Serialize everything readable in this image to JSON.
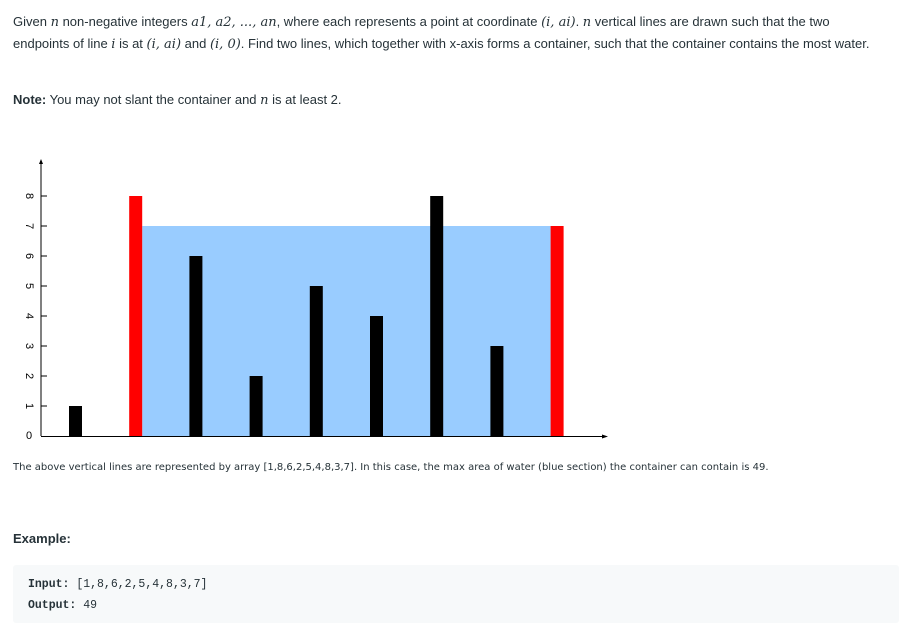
{
  "description": {
    "p1": "Given ",
    "n1": "n",
    "p2": " non-negative integers ",
    "seq": "a1, a2, ..., an",
    "p3": ", where each represents a point at coordinate ",
    "coord1": "(i, ai)",
    "p4": ". ",
    "n2": "n",
    "p5": " vertical lines are drawn such that the two endpoints of line ",
    "i1": "i",
    "p6": " is at ",
    "coord2": "(i, ai)",
    "p7": " and ",
    "coord3": "(i, 0)",
    "p8": ". Find two lines, which together with x-axis forms a container, such that the container contains the most water."
  },
  "note": {
    "label": "Note:",
    "p1": " You may not slant the container and ",
    "n": "n",
    "p2": " is at least 2."
  },
  "chart_data": {
    "type": "bar",
    "values": [
      1,
      8,
      6,
      2,
      5,
      4,
      8,
      3,
      7
    ],
    "highlighted_indices": [
      1,
      8
    ],
    "water_level": 7,
    "y_ticks": [
      "0",
      "1",
      "2",
      "3",
      "4",
      "5",
      "6",
      "7",
      "8"
    ],
    "ylim": [
      0,
      8
    ],
    "colors": {
      "bar": "#000000",
      "highlight": "#ff0000",
      "water": "#99ccff",
      "axis": "#000000"
    },
    "grid": false
  },
  "caption": "The above vertical lines are represented by array [1,8,6,2,5,4,8,3,7]. In this case, the max area of water (blue section) the container can contain is 49.",
  "example": {
    "heading": "Example:",
    "input_label": "Input:",
    "input_value": " [1,8,6,2,5,4,8,3,7]",
    "output_label": "Output:",
    "output_value": " 49"
  }
}
